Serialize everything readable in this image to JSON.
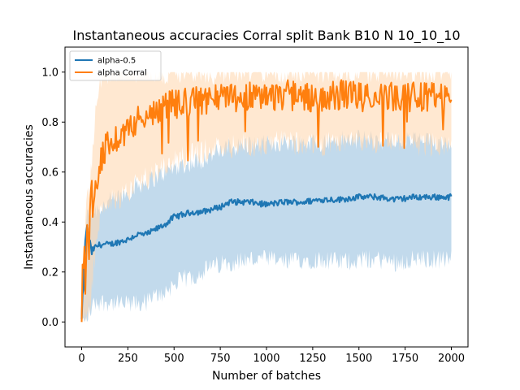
{
  "chart_data": {
    "type": "line",
    "title": "Instantaneous accuracies Corral split Bank B10 N 10_10_10",
    "xlabel": "Number of batches",
    "ylabel": "Instantaneous accuracies",
    "xlim": [
      -90,
      2090
    ],
    "ylim": [
      -0.1,
      1.1
    ],
    "x_ticks": [
      0,
      250,
      500,
      750,
      1000,
      1250,
      1500,
      1750,
      2000
    ],
    "y_ticks": [
      0.0,
      0.2,
      0.4,
      0.6,
      0.8,
      1.0
    ],
    "y_tick_labels": [
      "0.0",
      "0.2",
      "0.4",
      "0.6",
      "0.8",
      "1.0"
    ],
    "grid": false,
    "legend_position": "top-left",
    "series": [
      {
        "name": "alpha-0.5",
        "color": "#1f77b4",
        "band_color": "#aecde6",
        "x": [
          0,
          25,
          50,
          75,
          100,
          150,
          200,
          250,
          300,
          350,
          400,
          450,
          500,
          550,
          600,
          650,
          700,
          750,
          800,
          900,
          1000,
          1100,
          1200,
          1300,
          1400,
          1500,
          1600,
          1700,
          1800,
          1900,
          2000
        ],
        "mean": [
          0.0,
          0.38,
          0.28,
          0.3,
          0.31,
          0.31,
          0.32,
          0.33,
          0.35,
          0.35,
          0.37,
          0.39,
          0.42,
          0.43,
          0.44,
          0.44,
          0.45,
          0.46,
          0.48,
          0.48,
          0.47,
          0.48,
          0.48,
          0.49,
          0.49,
          0.5,
          0.5,
          0.49,
          0.5,
          0.5,
          0.5
        ],
        "lower": [
          0.0,
          0.0,
          0.05,
          0.08,
          0.08,
          0.08,
          0.07,
          0.07,
          0.07,
          0.08,
          0.1,
          0.12,
          0.15,
          0.17,
          0.18,
          0.2,
          0.22,
          0.23,
          0.24,
          0.25,
          0.25,
          0.24,
          0.25,
          0.25,
          0.24,
          0.25,
          0.25,
          0.24,
          0.25,
          0.25,
          0.25
        ],
        "upper": [
          0.0,
          0.42,
          0.44,
          0.45,
          0.46,
          0.48,
          0.5,
          0.52,
          0.55,
          0.56,
          0.58,
          0.6,
          0.62,
          0.63,
          0.64,
          0.65,
          0.67,
          0.68,
          0.7,
          0.71,
          0.71,
          0.72,
          0.72,
          0.72,
          0.73,
          0.73,
          0.73,
          0.72,
          0.73,
          0.72,
          0.73
        ]
      },
      {
        "name": "alpha Corral",
        "color": "#ff7f0e",
        "band_color": "#ffd8b3",
        "x": [
          0,
          25,
          50,
          75,
          100,
          150,
          200,
          250,
          300,
          350,
          400,
          450,
          500,
          550,
          600,
          650,
          700,
          750,
          800,
          900,
          1000,
          1100,
          1200,
          1300,
          1400,
          1500,
          1600,
          1700,
          1800,
          1900,
          2000
        ],
        "mean": [
          0.0,
          0.35,
          0.45,
          0.52,
          0.65,
          0.72,
          0.74,
          0.78,
          0.8,
          0.83,
          0.84,
          0.86,
          0.87,
          0.88,
          0.88,
          0.89,
          0.89,
          0.9,
          0.9,
          0.9,
          0.9,
          0.91,
          0.9,
          0.9,
          0.91,
          0.9,
          0.91,
          0.9,
          0.9,
          0.9,
          0.88
        ],
        "lower": [
          0.0,
          0.0,
          0.1,
          0.3,
          0.42,
          0.48,
          0.5,
          0.52,
          0.55,
          0.58,
          0.6,
          0.62,
          0.64,
          0.66,
          0.67,
          0.68,
          0.69,
          0.7,
          0.7,
          0.71,
          0.71,
          0.72,
          0.71,
          0.71,
          0.72,
          0.71,
          0.72,
          0.71,
          0.71,
          0.71,
          0.7
        ],
        "upper": [
          0.0,
          0.45,
          0.6,
          0.85,
          0.95,
          1.0,
          1.0,
          1.0,
          1.0,
          1.0,
          1.0,
          1.0,
          1.0,
          1.0,
          1.0,
          1.0,
          1.0,
          1.0,
          1.0,
          1.0,
          1.0,
          1.0,
          1.0,
          1.0,
          1.0,
          1.0,
          1.0,
          1.0,
          1.0,
          1.0,
          1.0
        ]
      }
    ]
  }
}
